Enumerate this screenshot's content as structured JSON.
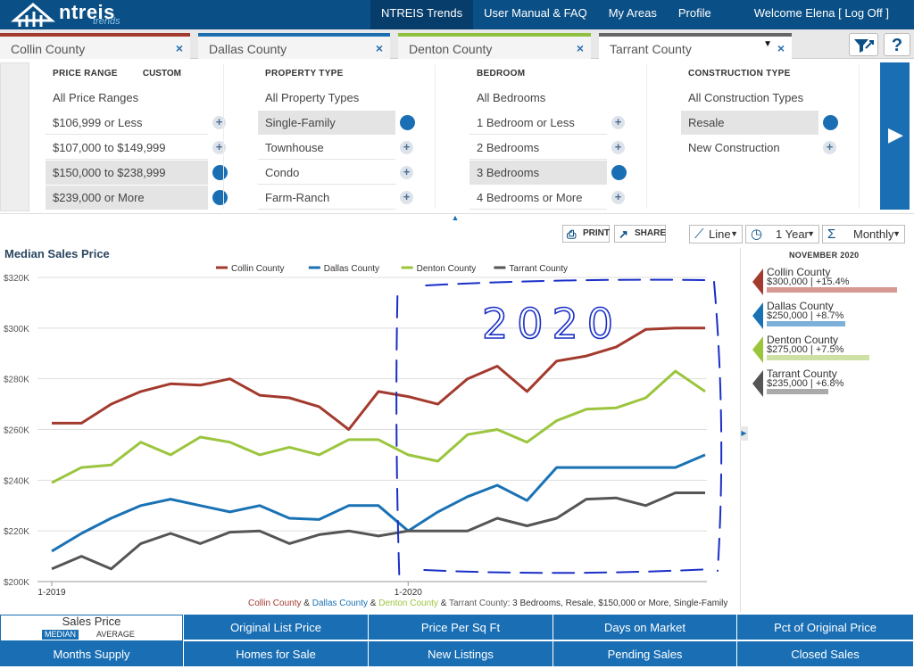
{
  "header": {
    "logo_text": "ntreis",
    "logo_sub": "trends",
    "nav": [
      "NTREIS Trends",
      "User Manual & FAQ",
      "My Areas",
      "Profile"
    ],
    "welcome": "Welcome Elena [ Log Off ]"
  },
  "tabs": [
    {
      "label": "Collin County",
      "color": "#a33a2e"
    },
    {
      "label": "Dallas County",
      "color": "#1b6fb0"
    },
    {
      "label": "Denton County",
      "color": "#8fc03f"
    },
    {
      "label": "Tarrant County",
      "color": "#666666"
    }
  ],
  "tab_close": "×",
  "help": "?",
  "filters": {
    "price": {
      "heading": "PRICE RANGE",
      "custom": "CUSTOM",
      "all": "All Price Ranges",
      "options": [
        "$106,999 or Less",
        "$107,000 to $149,999",
        "$150,000 to $238,999",
        "$239,000 or More"
      ]
    },
    "property": {
      "heading": "PROPERTY TYPE",
      "all": "All Property Types",
      "options": [
        "Single-Family",
        "Townhouse",
        "Condo",
        "Farm-Ranch"
      ]
    },
    "bedroom": {
      "heading": "BEDROOM",
      "all": "All Bedrooms",
      "options": [
        "1 Bedroom or Less",
        "2 Bedrooms",
        "3 Bedrooms",
        "4 Bedrooms or More"
      ]
    },
    "construction": {
      "heading": "CONSTRUCTION TYPE",
      "all": "All Construction Types",
      "options": [
        "Resale",
        "New Construction"
      ]
    }
  },
  "toolbar": {
    "print": "PRINT",
    "share": "SHARE",
    "chart_type": "Line",
    "range": "1 Year",
    "interval": "Monthly"
  },
  "chart_title": "Median Sales Price",
  "chart_data": {
    "type": "line",
    "title": "Median Sales Price",
    "x": [
      "1-2019",
      "2-2019",
      "3-2019",
      "4-2019",
      "5-2019",
      "6-2019",
      "7-2019",
      "8-2019",
      "9-2019",
      "10-2019",
      "11-2019",
      "12-2019",
      "1-2020",
      "2-2020",
      "3-2020",
      "4-2020",
      "5-2020",
      "6-2020",
      "7-2020",
      "8-2020",
      "9-2020",
      "10-2020",
      "11-2020"
    ],
    "x_tick_labels": [
      "1-2019",
      "1-2020"
    ],
    "y_ticks": [
      "$200K",
      "$220K",
      "$240K",
      "$260K",
      "$280K",
      "$300K",
      "$320K"
    ],
    "ylim": [
      200000,
      320000
    ],
    "grid": true,
    "legend_position": "top",
    "series": [
      {
        "name": "Collin County",
        "color": "#a33a2e",
        "values": [
          262500,
          262500,
          270000,
          275000,
          278000,
          277500,
          280000,
          273500,
          272500,
          269000,
          260000,
          275000,
          273000,
          270000,
          280000,
          285000,
          275000,
          287000,
          289000,
          292500,
          299500,
          300000,
          300000
        ]
      },
      {
        "name": "Dallas County",
        "color": "#1a72b5",
        "values": [
          212000,
          219000,
          225000,
          230000,
          232500,
          230000,
          227500,
          230000,
          225000,
          224500,
          230000,
          230000,
          220000,
          227500,
          233500,
          238000,
          232000,
          245000,
          245000,
          245000,
          245000,
          245000,
          250000
        ]
      },
      {
        "name": "Denton County",
        "color": "#9bc53d",
        "values": [
          239000,
          245000,
          246000,
          255000,
          250000,
          257000,
          255000,
          250000,
          253000,
          250000,
          256000,
          256000,
          250000,
          247500,
          258000,
          260000,
          255000,
          263500,
          268000,
          268500,
          272500,
          283000,
          275000
        ]
      },
      {
        "name": "Tarrant County",
        "color": "#555555",
        "values": [
          205000,
          210000,
          205000,
          215000,
          219000,
          215000,
          219500,
          220000,
          215000,
          218500,
          220000,
          218000,
          220000,
          220000,
          220000,
          225000,
          222000,
          225000,
          232500,
          233000,
          230000,
          235000,
          235000
        ]
      }
    ],
    "annotation": "2020"
  },
  "caption": {
    "c1": "Collin County",
    "amp1": " & ",
    "c2": "Dallas County",
    "amp2": " & ",
    "c3": "Denton County",
    "amp3": " & ",
    "c4": "Tarrant County",
    "rest": ": 3 Bedrooms, Resale, $150,000 or More, Single-Family"
  },
  "side_panel": {
    "date": "NOVEMBER 2020",
    "items": [
      {
        "name": "Collin County",
        "value": "$300,000 | +15.4%",
        "color": "#a33a2e",
        "bar_color": "#d79993",
        "bar_fraction": 1.0
      },
      {
        "name": "Dallas County",
        "value": "$250,000 | +8.7%",
        "color": "#1a72b5",
        "bar_color": "#7cb0d8",
        "bar_fraction": 0.6
      },
      {
        "name": "Denton County",
        "value": "$275,000 | +7.5%",
        "color": "#9bc53d",
        "bar_color": "#cfe0a4",
        "bar_fraction": 0.79
      },
      {
        "name": "Tarrant County",
        "value": "$235,000 | +6.8%",
        "color": "#555555",
        "bar_color": "#aaaaaa",
        "bar_fraction": 0.47
      }
    ]
  },
  "bottom_tabs": {
    "active": {
      "label": "Sales Price",
      "sub1": "MEDIAN",
      "sub2": "AVERAGE"
    },
    "row1": [
      "Original List Price",
      "Price Per Sq Ft",
      "Days on Market",
      "Pct of Original Price"
    ],
    "row2": [
      "Months Supply",
      "Homes for Sale",
      "New Listings",
      "Pending Sales",
      "Closed Sales"
    ]
  }
}
